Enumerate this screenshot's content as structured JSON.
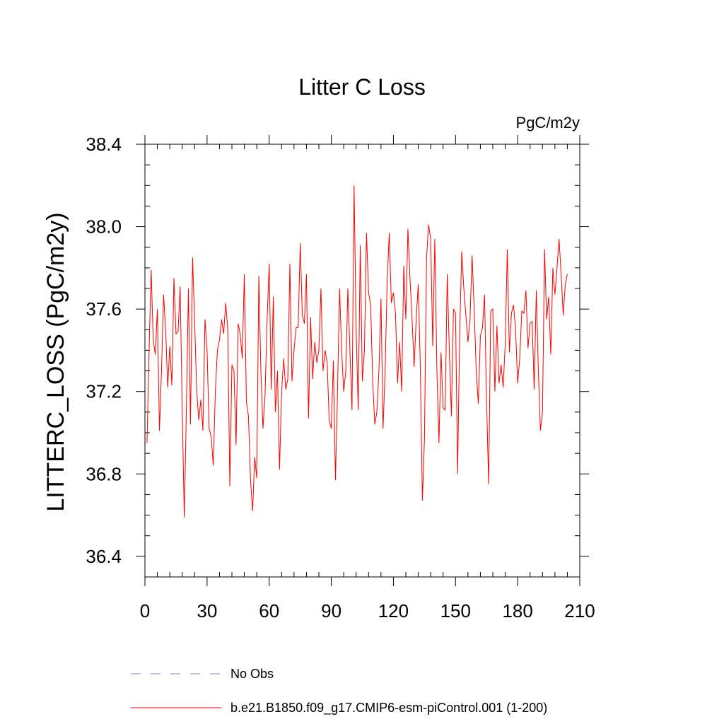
{
  "chart_data": {
    "type": "line",
    "title": "Litter C Loss",
    "units_label": "PgC/m2y",
    "ylabel": "LITTERC_LOSS  (PgC/m2y)",
    "xlabel": "",
    "xlim": [
      0,
      210
    ],
    "ylim": [
      36.3,
      38.4
    ],
    "x_ticks": [
      0,
      30,
      60,
      90,
      120,
      150,
      180,
      210
    ],
    "x_tick_labels": [
      "0",
      "30",
      "60",
      "90",
      "120",
      "150",
      "180",
      "210"
    ],
    "y_ticks": [
      36.4,
      36.8,
      37.2,
      37.6,
      38.0,
      38.4
    ],
    "y_tick_labels": [
      "36.4",
      "36.8",
      "37.2",
      "37.6",
      "38.0",
      "38.4"
    ],
    "grid": false,
    "legend_position": "bottom",
    "series": [
      {
        "name": "No Obs",
        "style": "dashed",
        "color": "#8a7fd6",
        "values": []
      },
      {
        "name": "b.e21.B1850.f09_g17.CMIP6-esm-piControl.001 (1-200)",
        "style": "solid",
        "color": "#ff0000",
        "x_start": 1,
        "values": [
          36.95,
          37.4,
          37.79,
          37.45,
          37.38,
          37.6,
          37.01,
          37.3,
          37.67,
          37.5,
          37.22,
          37.42,
          37.23,
          37.75,
          37.48,
          37.49,
          37.71,
          37.12,
          36.59,
          37.1,
          37.7,
          37.04,
          37.85,
          37.54,
          37.2,
          37.06,
          37.16,
          37.01,
          37.55,
          37.4,
          37.02,
          36.98,
          36.84,
          37.2,
          37.4,
          37.45,
          37.55,
          37.48,
          37.63,
          37.5,
          36.74,
          37.33,
          37.3,
          36.94,
          37.53,
          37.48,
          37.36,
          37.77,
          37.15,
          37.08,
          36.77,
          36.62,
          36.88,
          36.78,
          37.76,
          37.3,
          37.02,
          37.18,
          37.55,
          37.82,
          37.21,
          37.66,
          37.1,
          37.3,
          36.82,
          37.2,
          37.36,
          37.21,
          37.26,
          37.82,
          37.25,
          37.4,
          37.51,
          37.51,
          37.92,
          37.57,
          37.53,
          37.77,
          37.07,
          37.56,
          37.26,
          37.44,
          37.34,
          37.4,
          37.7,
          37.3,
          37.4,
          37.34,
          37.06,
          37.02,
          37.35,
          36.77,
          37.2,
          37.7,
          37.4,
          37.2,
          37.3,
          37.7,
          37.4,
          37.11,
          38.2,
          37.5,
          37.11,
          37.91,
          37.25,
          37.4,
          37.97,
          37.68,
          37.62,
          37.25,
          37.04,
          37.1,
          37.3,
          37.65,
          37.02,
          37.3,
          37.74,
          37.97,
          37.63,
          37.68,
          37.58,
          37.24,
          37.44,
          37.2,
          37.81,
          37.55,
          37.99,
          37.75,
          37.55,
          37.32,
          37.55,
          37.72,
          37.32,
          36.67,
          36.97,
          37.85,
          38.01,
          37.94,
          37.42,
          37.94,
          37.3,
          36.95,
          37.39,
          37.12,
          37.11,
          37.77,
          37.4,
          37.08,
          37.6,
          37.58,
          36.8,
          37.48,
          37.88,
          37.7,
          37.57,
          37.44,
          37.55,
          37.86,
          37.6,
          37.3,
          37.14,
          37.47,
          37.51,
          37.67,
          37.15,
          36.75,
          37.59,
          37.6,
          37.2,
          37.52,
          37.24,
          37.33,
          37.22,
          37.43,
          37.89,
          37.39,
          37.58,
          37.62,
          37.5,
          37.24,
          37.36,
          37.59,
          37.58,
          37.69,
          37.41,
          37.53,
          37.54,
          37.21,
          37.69,
          37.3,
          37.01,
          37.1,
          37.89,
          37.55,
          37.66,
          37.38,
          37.8,
          37.67,
          37.8,
          37.94,
          37.77,
          37.57,
          37.72,
          37.77
        ]
      }
    ]
  }
}
